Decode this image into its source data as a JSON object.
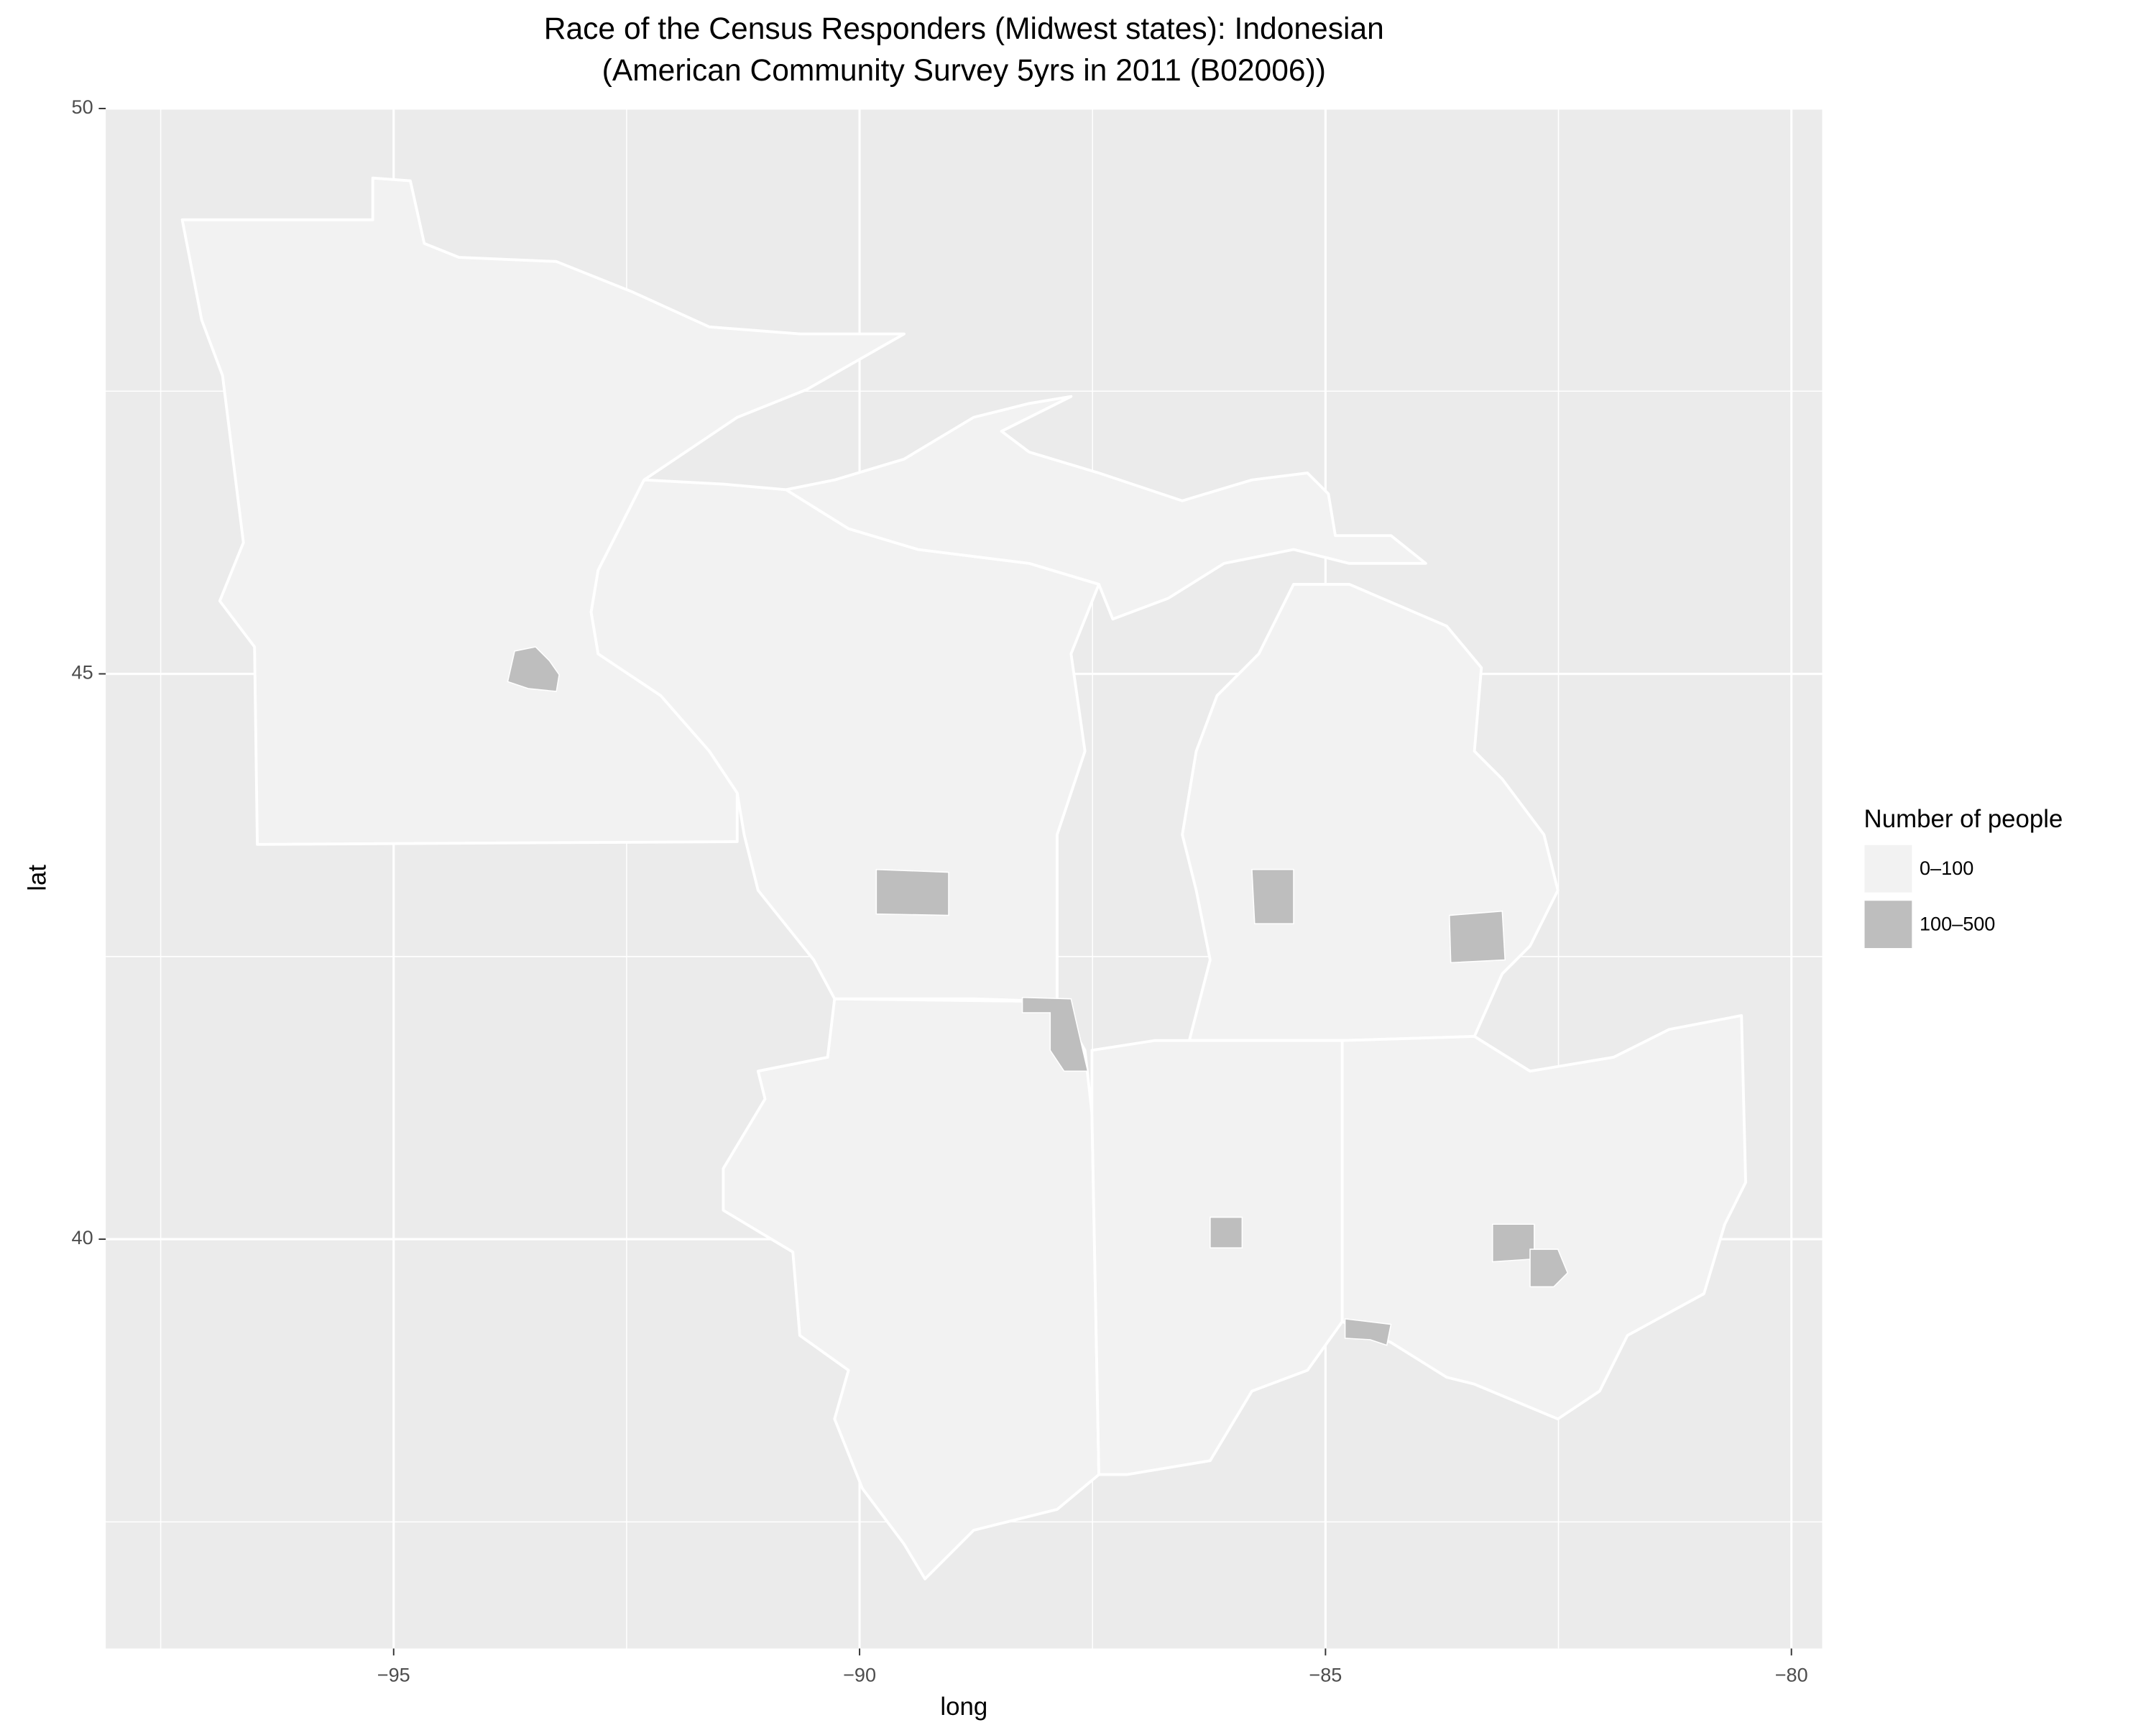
{
  "chart_data": {
    "type": "map",
    "title": [
      "Race of the Census Responders (Midwest states): Indonesian",
      "(American Community Survey 5yrs in 2011 (B02006))"
    ],
    "xlabel": "long",
    "ylabel": "lat",
    "xlim": [
      -98.09,
      -79.67
    ],
    "xticks": [
      {
        "value": -95,
        "label": "−95"
      },
      {
        "value": -90,
        "label": "−90"
      },
      {
        "value": -85,
        "label": "−85"
      },
      {
        "value": -80,
        "label": "−80"
      }
    ],
    "ylim": [
      36.38,
      50
    ],
    "yticks": [
      40,
      45,
      50
    ],
    "grid": true,
    "legend": {
      "title": "Number of people",
      "position": "right",
      "items": [
        {
          "label": "0–100",
          "color": "#f2f2f2"
        },
        {
          "label": "100–500",
          "color": "#bebebe"
        }
      ]
    }
  }
}
